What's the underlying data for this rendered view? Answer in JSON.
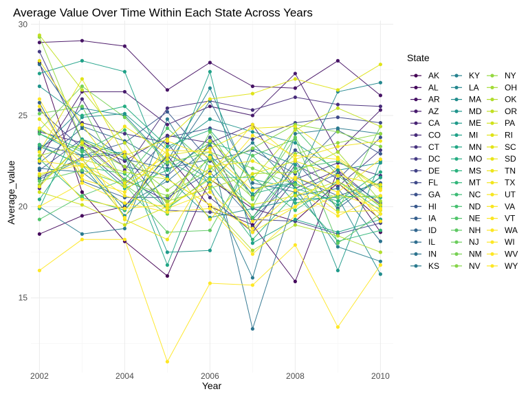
{
  "chart_data": {
    "type": "line",
    "title": "Average Value Over Time Within Each State Across Years",
    "xlabel": "Year",
    "ylabel": "Average_value",
    "xlim": [
      2001.8,
      2010.3
    ],
    "ylim": [
      10.9,
      30.2
    ],
    "x_ticks": [
      2002,
      2004,
      2006,
      2008,
      2010
    ],
    "x_tick_labels": [
      "2002",
      "2004",
      "2006",
      "2008",
      "2010"
    ],
    "y_ticks": [
      15,
      20,
      25,
      30
    ],
    "y_tick_labels": [
      "15",
      "20",
      "25",
      "30"
    ],
    "grid": true,
    "legend": {
      "title": "State",
      "position": "right",
      "columns": 3
    },
    "x": [
      2002,
      2003,
      2004,
      2005,
      2006,
      2007,
      2008,
      2009,
      2010
    ],
    "series": [
      {
        "name": "AK",
        "color": "#440154",
        "values": [
          27.9,
          20.8,
          18.1,
          16.2,
          21.5,
          19.9,
          19.2,
          21.3,
          19.3
        ]
      },
      {
        "name": "AL",
        "color": "#460A5D",
        "values": [
          18.5,
          19.5,
          20.0,
          22.8,
          20.0,
          19.0,
          15.9,
          22.0,
          18.6
        ]
      },
      {
        "name": "AR",
        "color": "#471365",
        "values": [
          29.0,
          29.1,
          28.8,
          26.4,
          27.9,
          26.6,
          26.5,
          28.0,
          26.1
        ]
      },
      {
        "name": "AZ",
        "color": "#481B6D",
        "values": [
          22.6,
          26.3,
          26.3,
          24.5,
          25.5,
          25.0,
          27.3,
          23.0,
          25.3
        ]
      },
      {
        "name": "CA",
        "color": "#482374",
        "values": [
          24.1,
          23.5,
          22.5,
          23.9,
          23.5,
          24.5,
          21.0,
          22.0,
          20.1
        ]
      },
      {
        "name": "CO",
        "color": "#472B7A",
        "values": [
          21.0,
          25.9,
          22.0,
          25.4,
          25.8,
          25.3,
          26.0,
          25.6,
          25.5
        ]
      },
      {
        "name": "CT",
        "color": "#46327E",
        "values": [
          23.2,
          24.6,
          24.0,
          23.5,
          20.5,
          18.6,
          21.5,
          22.4,
          21.7
        ]
      },
      {
        "name": "DC",
        "color": "#443A83",
        "values": [
          28.5,
          23.6,
          21.5,
          20.3,
          23.5,
          18.9,
          22.3,
          21.1,
          23.1
        ]
      },
      {
        "name": "DE",
        "color": "#414287",
        "values": [
          21.6,
          22.7,
          22.9,
          19.8,
          19.7,
          19.3,
          19.2,
          18.5,
          19.1
        ]
      },
      {
        "name": "FL",
        "color": "#3E4989",
        "values": [
          25.3,
          23.2,
          21.2,
          23.8,
          24.3,
          23.7,
          24.6,
          24.9,
          24.6
        ]
      },
      {
        "name": "GA",
        "color": "#3B518B",
        "values": [
          22.0,
          23.7,
          22.2,
          21.7,
          23.8,
          20.6,
          23.1,
          21.5,
          23.8
        ]
      },
      {
        "name": "HI",
        "color": "#38588C",
        "values": [
          23.4,
          22.8,
          23.5,
          25.2,
          22.5,
          23.1,
          21.8,
          24.2,
          22.9
        ]
      },
      {
        "name": "IA",
        "color": "#355F8D",
        "values": [
          25.7,
          21.4,
          20.5,
          20.5,
          21.9,
          19.3,
          21.6,
          20.6,
          21.3
        ]
      },
      {
        "name": "ID",
        "color": "#31668E",
        "values": [
          22.4,
          24.3,
          22.6,
          22.1,
          22.6,
          19.4,
          22.5,
          19.9,
          21.6
        ]
      },
      {
        "name": "IL",
        "color": "#2E6D8E",
        "values": [
          27.8,
          24.4,
          23.6,
          22.3,
          25.8,
          21.3,
          20.8,
          21.8,
          20.2
        ]
      },
      {
        "name": "IN",
        "color": "#2C738E",
        "values": [
          22.1,
          21.9,
          20.1,
          21.4,
          23.3,
          13.3,
          20.6,
          21.0,
          18.1
        ]
      },
      {
        "name": "KS",
        "color": "#297A8E",
        "values": [
          20.0,
          18.5,
          18.8,
          24.8,
          21.1,
          16.1,
          24.0,
          24.3,
          24.0
        ]
      },
      {
        "name": "KY",
        "color": "#26818E",
        "values": [
          21.5,
          22.6,
          19.8,
          22.9,
          21.5,
          23.5,
          21.0,
          17.8,
          17.0
        ]
      },
      {
        "name": "LA",
        "color": "#24878E",
        "values": [
          23.1,
          25.4,
          25.0,
          22.5,
          26.5,
          21.0,
          21.3,
          26.3,
          26.8
        ]
      },
      {
        "name": "MA",
        "color": "#228D8D",
        "values": [
          23.3,
          22.3,
          19.5,
          21.6,
          19.4,
          19.9,
          20.4,
          20.5,
          16.3
        ]
      },
      {
        "name": "MD",
        "color": "#20948C",
        "values": [
          26.6,
          24.9,
          25.1,
          23.1,
          24.8,
          24.1,
          23.5,
          22.0,
          22.4
        ]
      },
      {
        "name": "ME",
        "color": "#1F9A8A",
        "values": [
          24.0,
          22.8,
          23.0,
          17.5,
          17.6,
          23.2,
          22.3,
          16.5,
          22.5
        ]
      },
      {
        "name": "MI",
        "color": "#1FA188",
        "values": [
          27.3,
          28.0,
          27.4,
          21.6,
          27.4,
          18.0,
          19.3,
          18.6,
          19.3
        ]
      },
      {
        "name": "MN",
        "color": "#21A685",
        "values": [
          20.4,
          23.7,
          22.8,
          16.8,
          22.8,
          20.7,
          21.3,
          20.1,
          21.6
        ]
      },
      {
        "name": "MO",
        "color": "#25AC82",
        "values": [
          19.9,
          25.0,
          25.5,
          23.3,
          24.2,
          21.5,
          21.0,
          20.3,
          21.9
        ]
      },
      {
        "name": "MS",
        "color": "#2BB17E",
        "values": [
          24.2,
          23.1,
          21.0,
          22.0,
          23.5,
          22.8,
          20.2,
          20.6,
          20.5
        ]
      },
      {
        "name": "MT",
        "color": "#32B67A",
        "values": [
          22.6,
          20.5,
          19.8,
          22.5,
          21.3,
          18.2,
          20.7,
          18.1,
          18.7
        ]
      },
      {
        "name": "NC",
        "color": "#3BBB75",
        "values": [
          23.4,
          22.2,
          21.8,
          19.9,
          21.6,
          21.6,
          19.8,
          21.4,
          19.8
        ]
      },
      {
        "name": "ND",
        "color": "#45C06F",
        "values": [
          24.0,
          23.0,
          24.2,
          19.8,
          22.8,
          19.4,
          22.1,
          22.5,
          21.1
        ]
      },
      {
        "name": "NE",
        "color": "#50C46A",
        "values": [
          19.3,
          20.6,
          21.5,
          24.3,
          22.2,
          20.0,
          24.3,
          21.7,
          20.0
        ]
      },
      {
        "name": "NH",
        "color": "#5DC863",
        "values": [
          21.4,
          22.0,
          21.2,
          18.6,
          18.7,
          22.8,
          23.7,
          18.0,
          19.6
        ]
      },
      {
        "name": "NJ",
        "color": "#6ACD5B",
        "values": [
          25.1,
          25.5,
          21.2,
          19.6,
          24.1,
          20.4,
          23.8,
          19.8,
          24.4
        ]
      },
      {
        "name": "NM",
        "color": "#77D153",
        "values": [
          24.2,
          26.6,
          24.9,
          22.4,
          23.0,
          22.1,
          21.2,
          20.5,
          20.6
        ]
      },
      {
        "name": "NV",
        "color": "#86D549",
        "values": [
          21.2,
          23.5,
          21.4,
          20.6,
          22.1,
          23.2,
          24.5,
          24.1,
          23.3
        ]
      },
      {
        "name": "NY",
        "color": "#94D840",
        "values": [
          29.3,
          23.6,
          22.7,
          20.9,
          22.6,
          20.5,
          22.9,
          23.5,
          24.0
        ]
      },
      {
        "name": "OH",
        "color": "#A3DB36",
        "values": [
          22.8,
          23.4,
          22.2,
          20.3,
          21.0,
          21.8,
          21.9,
          23.0,
          20.3
        ]
      },
      {
        "name": "OK",
        "color": "#B2DD2D",
        "values": [
          21.7,
          22.6,
          21.9,
          21.5,
          20.1,
          17.6,
          19.0,
          18.4,
          17.5
        ]
      },
      {
        "name": "OR",
        "color": "#C2DF23",
        "values": [
          29.4,
          26.4,
          23.5,
          20.1,
          23.6,
          21.5,
          24.2,
          25.4,
          24.4
        ]
      },
      {
        "name": "PA",
        "color": "#D0E11C",
        "values": [
          20.8,
          20.1,
          19.0,
          20.0,
          21.5,
          20.1,
          20.6,
          21.4,
          20.1
        ]
      },
      {
        "name": "RI",
        "color": "#DFE318",
        "values": [
          23.0,
          27.0,
          22.8,
          23.7,
          25.9,
          26.2,
          27.0,
          26.4,
          27.8
        ]
      },
      {
        "name": "SC",
        "color": "#E3E418",
        "values": [
          24.8,
          22.3,
          21.1,
          22.6,
          19.3,
          21.8,
          22.5,
          21.7,
          21.2
        ]
      },
      {
        "name": "SD",
        "color": "#E9E51A",
        "values": [
          28.0,
          24.5,
          21.3,
          22.8,
          23.2,
          24.3,
          24.4,
          22.7,
          21.0
        ]
      },
      {
        "name": "TN",
        "color": "#EEE51C",
        "values": [
          21.1,
          23.5,
          19.3,
          18.2,
          22.2,
          22.5,
          21.5,
          19.7,
          19.8
        ]
      },
      {
        "name": "TX",
        "color": "#F2E51D",
        "values": [
          22.5,
          22.2,
          24.4,
          22.9,
          21.8,
          24.5,
          22.6,
          23.3,
          23.6
        ]
      },
      {
        "name": "UT",
        "color": "#F6E61F",
        "values": [
          21.8,
          22.3,
          20.6,
          19.9,
          20.8,
          18.6,
          20.0,
          22.2,
          19.2
        ]
      },
      {
        "name": "VA",
        "color": "#F9E621",
        "values": [
          25.5,
          21.5,
          20.8,
          23.1,
          23.0,
          20.9,
          21.6,
          20.8,
          22.6
        ]
      },
      {
        "name": "VT",
        "color": "#FBE622",
        "values": [
          23.0,
          20.4,
          19.9,
          20.1,
          21.2,
          23.9,
          22.8,
          22.6,
          20.9
        ]
      },
      {
        "name": "WA",
        "color": "#FDE724",
        "values": [
          20.0,
          21.3,
          20.2,
          19.7,
          19.9,
          17.4,
          19.5,
          20.7,
          19.9
        ]
      },
      {
        "name": "WI",
        "color": "#FDE725",
        "values": [
          24.3,
          22.6,
          19.4,
          23.6,
          22.7,
          19.2,
          20.0,
          21.3,
          19.6
        ]
      },
      {
        "name": "WV",
        "color": "#FEE725",
        "values": [
          16.5,
          18.2,
          18.2,
          11.5,
          15.8,
          15.7,
          17.9,
          13.4,
          16.8
        ]
      },
      {
        "name": "WY",
        "color": "#FDE725",
        "values": [
          25.9,
          21.7,
          23.0,
          21.5,
          20.1,
          18.8,
          20.9,
          19.5,
          20.6
        ]
      }
    ]
  }
}
